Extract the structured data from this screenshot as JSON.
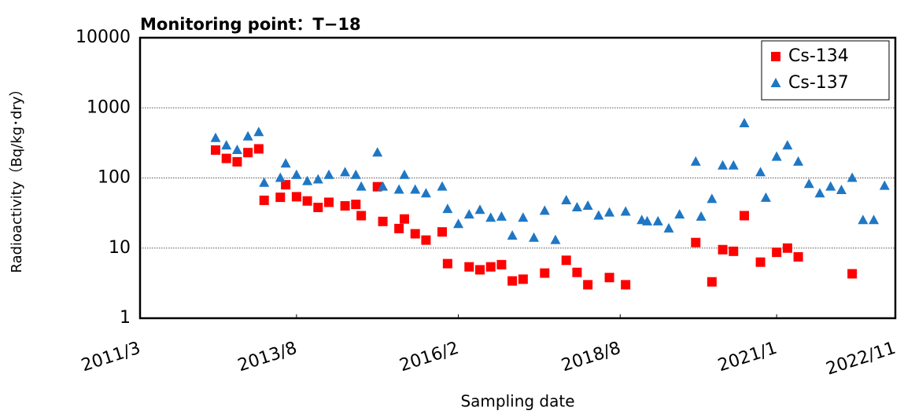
{
  "chart_data": {
    "type": "scatter",
    "title": "Monitoring point：T−18",
    "xlabel": "Sampling date",
    "ylabel": "Radioactivity（Bq/kg･dry）",
    "log_y": true,
    "grid": true,
    "legend": "upper right",
    "xlim": [
      "2011/3",
      "2022/11"
    ],
    "xticks": [
      "2011/3",
      "2013/8",
      "2016/2",
      "2018/8",
      "2021/1",
      "2022/11"
    ],
    "ylim": [
      1,
      10000
    ],
    "yticks": [
      1,
      10,
      100,
      1000,
      10000
    ],
    "series": [
      {
        "name": "Cs-134",
        "color": "#ff0000",
        "marker": "square",
        "x": [
          "2012/5",
          "2012/7",
          "2012/9",
          "2012/11",
          "2013/1",
          "2013/2",
          "2013/5",
          "2013/6",
          "2013/8",
          "2013/10",
          "2013/12",
          "2014/2",
          "2014/5",
          "2014/7",
          "2014/8",
          "2014/11",
          "2014/12",
          "2015/3",
          "2015/4",
          "2015/6",
          "2015/8",
          "2015/11",
          "2015/12",
          "2016/4",
          "2016/6",
          "2016/8",
          "2016/10",
          "2016/12",
          "2017/2",
          "2017/6",
          "2017/10",
          "2017/12",
          "2018/2",
          "2018/6",
          "2018/9",
          "2019/10",
          "2020/1",
          "2020/3",
          "2020/5",
          "2020/7",
          "2020/10",
          "2021/1",
          "2021/3",
          "2021/5",
          "2022/3"
        ],
        "values": [
          250,
          190,
          170,
          230,
          260,
          48,
          53,
          80,
          54,
          47,
          38,
          45,
          40,
          42,
          29,
          75,
          24,
          19,
          26,
          16,
          13,
          17,
          6,
          5.4,
          4.9,
          5.4,
          5.8,
          3.4,
          3.6,
          4.4,
          6.7,
          4.5,
          3,
          3.8,
          3,
          12,
          3.3,
          9.5,
          9,
          29,
          6.3,
          8.7,
          10,
          7.5,
          4.3
        ]
      },
      {
        "name": "Cs-137",
        "color": "#1f77c4",
        "marker": "triangle",
        "x": [
          "2012/5",
          "2012/7",
          "2012/9",
          "2012/11",
          "2013/1",
          "2013/2",
          "2013/5",
          "2013/6",
          "2013/8",
          "2013/10",
          "2013/12",
          "2014/2",
          "2014/5",
          "2014/7",
          "2014/8",
          "2014/11",
          "2014/12",
          "2015/3",
          "2015/4",
          "2015/6",
          "2015/8",
          "2015/11",
          "2015/12",
          "2016/2",
          "2016/4",
          "2016/6",
          "2016/8",
          "2016/10",
          "2016/12",
          "2017/2",
          "2017/4",
          "2017/6",
          "2017/8",
          "2017/10",
          "2017/12",
          "2018/2",
          "2018/4",
          "2018/6",
          "2018/9",
          "2018/12",
          "2019/1",
          "2019/3",
          "2019/5",
          "2019/7",
          "2019/10",
          "2019/11",
          "2020/1",
          "2020/3",
          "2020/5",
          "2020/7",
          "2020/10",
          "2020/11",
          "2021/1",
          "2021/3",
          "2021/5",
          "2021/7",
          "2021/9",
          "2021/11",
          "2022/1",
          "2022/3",
          "2022/5",
          "2022/7",
          "2022/9"
        ],
        "values": [
          370,
          290,
          250,
          390,
          450,
          85,
          100,
          160,
          110,
          90,
          95,
          110,
          120,
          110,
          75,
          230,
          75,
          68,
          110,
          68,
          60,
          75,
          36,
          22,
          30,
          35,
          27,
          28,
          15,
          27,
          14,
          34,
          13,
          48,
          38,
          40,
          29,
          32,
          33,
          25,
          24,
          24,
          19,
          30,
          170,
          28,
          50,
          150,
          150,
          600,
          120,
          52,
          200,
          290,
          170,
          82,
          60,
          75,
          67,
          100,
          25,
          25,
          77
        ]
      }
    ]
  }
}
